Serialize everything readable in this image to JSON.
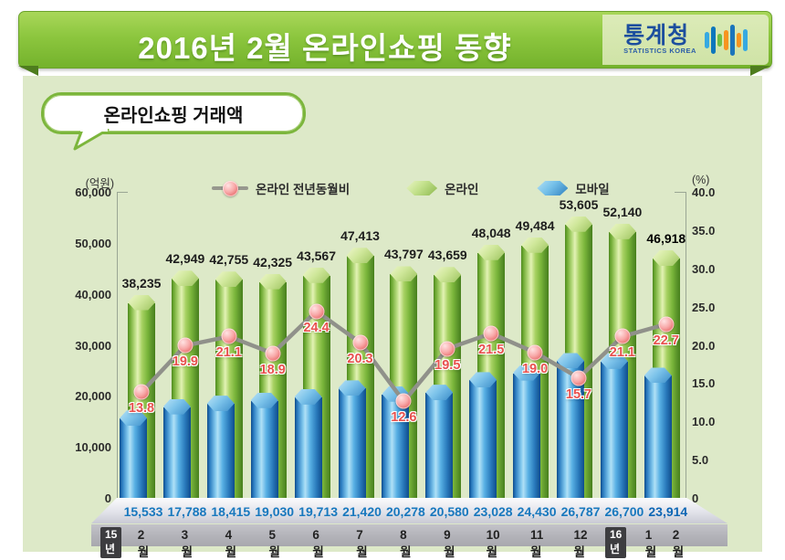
{
  "header": {
    "title": "2016년 2월 온라인쇼핑 동향",
    "agency_name": "통계청",
    "agency_subtitle": "STATISTICS KOREA"
  },
  "section_title": "온라인쇼핑 거래액",
  "chart_data": {
    "type": "bar",
    "title": "온라인쇼핑 거래액",
    "left_axis": {
      "unit": "(억원)",
      "min": 0,
      "max": 60000,
      "ticks": [
        "60,000",
        "50,000",
        "40,000",
        "30,000",
        "20,000",
        "10,000",
        "0"
      ]
    },
    "right_axis": {
      "unit": "(%)",
      "min": 0,
      "max": 40,
      "ticks": [
        "40.0",
        "35.0",
        "30.0",
        "25.0",
        "20.0",
        "15.0",
        "10.0",
        "5.0",
        "0"
      ]
    },
    "categories": [
      "2월",
      "3월",
      "4월",
      "5월",
      "6월",
      "7월",
      "8월",
      "9월",
      "10월",
      "11월",
      "12월",
      "1월",
      "2월"
    ],
    "year_markers": [
      {
        "index": 0,
        "label": "15년"
      },
      {
        "index": 11,
        "label": "16년"
      }
    ],
    "legend": {
      "line": "온라인 전년동월비",
      "bar_green": "온라인",
      "bar_blue": "모바일"
    },
    "series": [
      {
        "name": "온라인",
        "kind": "bar",
        "color": "green",
        "axis": "left",
        "values": [
          38235,
          42949,
          42755,
          42325,
          43567,
          47413,
          43797,
          43659,
          48048,
          49484,
          53605,
          52140,
          46918
        ],
        "labels": [
          "38,235",
          "42,949",
          "42,755",
          "42,325",
          "43,567",
          "47,413",
          "43,797",
          "43,659",
          "48,048",
          "49,484",
          "53,605",
          "52,140",
          "46,918"
        ]
      },
      {
        "name": "모바일",
        "kind": "bar",
        "color": "blue",
        "axis": "left",
        "values": [
          15533,
          17788,
          18415,
          19030,
          19713,
          21420,
          20278,
          20580,
          23028,
          24430,
          26787,
          26700,
          23914
        ],
        "labels": [
          "15,533",
          "17,788",
          "18,415",
          "19,030",
          "19,713",
          "21,420",
          "20,278",
          "20,580",
          "23,028",
          "24,430",
          "26,787",
          "26,700",
          "23,914"
        ]
      },
      {
        "name": "온라인 전년동월비",
        "kind": "line",
        "axis": "right",
        "values": [
          13.8,
          19.9,
          21.1,
          18.9,
          24.4,
          20.3,
          12.6,
          19.5,
          21.5,
          19.0,
          15.7,
          21.1,
          22.7
        ],
        "labels": [
          "13.8",
          "19.9",
          "21.1",
          "18.9",
          "24.4",
          "20.3",
          "12.6",
          "19.5",
          "21.5",
          "19.0",
          "15.7",
          "21.1",
          "22.7"
        ]
      }
    ],
    "line_color": "#90918a",
    "marker_color": "#f08a8a",
    "grid": false,
    "legend_position": "top"
  }
}
